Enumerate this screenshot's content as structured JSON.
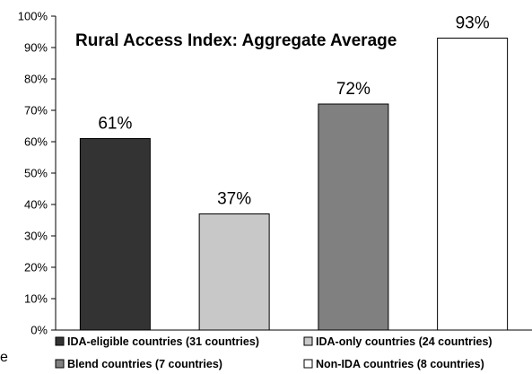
{
  "chart_data": {
    "type": "bar",
    "title": "Rural Access Index: Aggregate Average",
    "xlabel": "",
    "ylabel": "",
    "ylim": [
      0,
      100
    ],
    "y_ticks": [
      "0%",
      "10%",
      "20%",
      "30%",
      "40%",
      "50%",
      "60%",
      "70%",
      "80%",
      "90%",
      "100%"
    ],
    "grid": false,
    "legend_position": "bottom",
    "series": [
      {
        "name": "IDA-eligible countries (31 countries)",
        "value": 61,
        "label": "61%",
        "color": "#333333"
      },
      {
        "name": "IDA-only countries (24 countries)",
        "value": 37,
        "label": "37%",
        "color": "#c8c8c8"
      },
      {
        "name": "Blend countries (7 countries)",
        "value": 72,
        "label": "72%",
        "color": "#808080"
      },
      {
        "name": "Non-IDA countries (8 countries)",
        "value": 93,
        "label": "93%",
        "color": "#ffffff"
      }
    ]
  },
  "stray_text": "e"
}
